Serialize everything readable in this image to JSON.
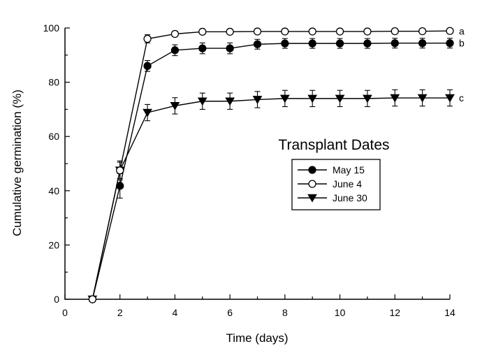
{
  "chart_data": {
    "type": "line",
    "xlabel": "Time (days)",
    "ylabel": "Cumulative germination (%)",
    "xlim": [
      0,
      14
    ],
    "ylim": [
      0,
      100
    ],
    "xticks": [
      0,
      2,
      4,
      6,
      8,
      10,
      12,
      14
    ],
    "yticks": [
      0,
      20,
      40,
      60,
      80,
      100
    ],
    "grid": false,
    "legend": {
      "title": "Transplant Dates",
      "placement": "center-right"
    },
    "series": [
      {
        "name": "May 15",
        "marker": "filled-circle",
        "x": [
          1,
          2,
          3,
          4,
          5,
          6,
          7,
          8,
          9,
          10,
          11,
          12,
          13,
          14
        ],
        "y": [
          0,
          41.8,
          86,
          91.8,
          92.5,
          92.5,
          94,
          94.3,
          94.3,
          94.3,
          94.3,
          94.4,
          94.4,
          94.4
        ],
        "err": [
          0,
          4.5,
          2.0,
          2.0,
          2.0,
          2.0,
          1.8,
          1.8,
          1.8,
          1.8,
          1.8,
          1.8,
          1.8,
          1.8
        ],
        "letter": "b"
      },
      {
        "name": "June 4",
        "marker": "open-circle",
        "x": [
          1,
          2,
          3,
          4,
          5,
          6,
          7,
          8,
          9,
          10,
          11,
          12,
          13,
          14
        ],
        "y": [
          0,
          47.5,
          96,
          97.8,
          98.6,
          98.6,
          98.7,
          98.7,
          98.7,
          98.7,
          98.7,
          98.8,
          98.8,
          98.9
        ],
        "err": [
          0,
          3.0,
          1.5,
          1.0,
          0.8,
          0.7,
          0.7,
          0.7,
          0.7,
          0.7,
          0.7,
          0.7,
          0.7,
          0.7
        ],
        "letter": "a"
      },
      {
        "name": "June 30",
        "marker": "filled-triangle-down",
        "x": [
          1,
          2,
          3,
          4,
          5,
          6,
          7,
          8,
          9,
          10,
          11,
          12,
          13,
          14
        ],
        "y": [
          0,
          47.5,
          68.8,
          71.3,
          73,
          73,
          73.6,
          74,
          74,
          74,
          74,
          74.2,
          74.2,
          74.2
        ],
        "err": [
          0,
          3.5,
          3.0,
          3.0,
          3.0,
          3.0,
          3.0,
          3.0,
          3.0,
          3.0,
          3.0,
          3.0,
          3.0,
          3.0
        ],
        "letter": "c"
      }
    ]
  }
}
